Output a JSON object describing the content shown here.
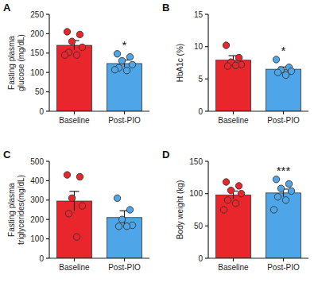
{
  "chart_data": [
    {
      "type": "bar",
      "title": "A",
      "y_label": [
        "Fasting plasma",
        "glucose (mg/dL)"
      ],
      "categories": [
        "Baseline",
        "Post-PIO"
      ],
      "values": [
        170,
        123
      ],
      "errors": [
        12,
        9
      ],
      "points": [
        [
          205,
          198,
          180,
          165,
          152,
          145,
          145
        ],
        [
          148,
          140,
          130,
          120,
          112,
          105,
          107
        ]
      ],
      "colors": [
        "#e8262b",
        "#4ea6e8"
      ],
      "ylim": [
        0,
        250
      ],
      "yticks": [
        0,
        50,
        100,
        150,
        200,
        250
      ],
      "annotations": [
        {
          "label": "*",
          "category": "Post-PIO"
        }
      ]
    },
    {
      "type": "bar",
      "title": "B",
      "y_label": [
        "HbA1c (%)"
      ],
      "categories": [
        "Baseline",
        "Post-PIO"
      ],
      "values": [
        7.9,
        6.5
      ],
      "errors": [
        0.7,
        0.35
      ],
      "points": [
        [
          10.2,
          8.3,
          7.6,
          7.2,
          7.0,
          7.1
        ],
        [
          8.0,
          6.8,
          6.4,
          6.2,
          6.0,
          5.6
        ]
      ],
      "colors": [
        "#e8262b",
        "#4ea6e8"
      ],
      "ylim": [
        0,
        15
      ],
      "yticks": [
        0,
        5,
        10,
        15
      ],
      "annotations": [
        {
          "label": "*",
          "category": "Post-PIO"
        }
      ]
    },
    {
      "type": "bar",
      "title": "C",
      "y_label": [
        "Fasting plasma",
        "triglycerides(mg/dL)"
      ],
      "categories": [
        "Baseline",
        "Post-PIO"
      ],
      "values": [
        295,
        210
      ],
      "errors": [
        50,
        35
      ],
      "points": [
        [
          430,
          420,
          310,
          270,
          230,
          110
        ],
        [
          310,
          250,
          200,
          170,
          165,
          165
        ]
      ],
      "colors": [
        "#e8262b",
        "#4ea6e8"
      ],
      "ylim": [
        0,
        500
      ],
      "yticks": [
        0,
        100,
        200,
        300,
        400,
        500
      ]
    },
    {
      "type": "bar",
      "title": "D",
      "y_label": [
        "Body weight (kg)"
      ],
      "categories": [
        "Baseline",
        "Post-PIO"
      ],
      "values": [
        98,
        101
      ],
      "errors": [
        6,
        6
      ],
      "points": [
        [
          118,
          112,
          105,
          100,
          90,
          85,
          75
        ],
        [
          122,
          115,
          108,
          104,
          95,
          90,
          75
        ]
      ],
      "colors": [
        "#e8262b",
        "#4ea6e8"
      ],
      "ylim": [
        0,
        150
      ],
      "yticks": [
        0,
        50,
        100,
        150
      ],
      "annotations": [
        {
          "label": "***",
          "category": "Post-PIO"
        }
      ]
    }
  ]
}
